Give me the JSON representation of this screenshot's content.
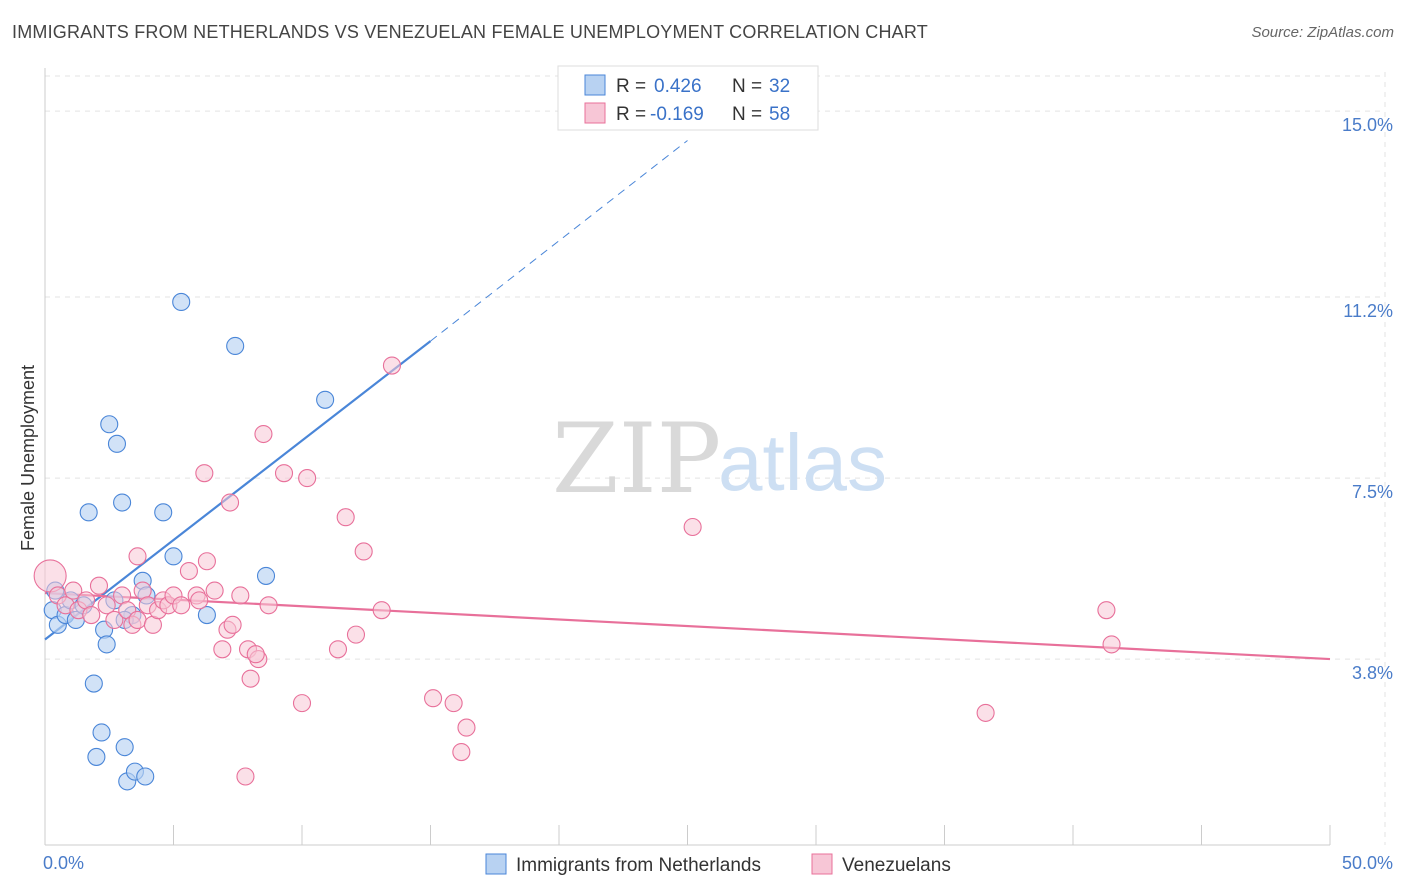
{
  "header": {
    "title": "IMMIGRANTS FROM NETHERLANDS VS VENEZUELAN FEMALE UNEMPLOYMENT CORRELATION CHART",
    "source": "Source: ZipAtlas.com"
  },
  "watermark": {
    "zip": "ZIP",
    "atlas": "atlas"
  },
  "colors": {
    "blue": "#4a86d8",
    "blue_fill": "#b8d2f2",
    "pink": "#e8709a",
    "pink_fill": "#f7c6d6",
    "axis_text": "#4a7cc9",
    "grid": "#e3e3e3"
  },
  "chart_data": {
    "type": "scatter",
    "ylabel": "Female Unemployment",
    "xlim": [
      0,
      50
    ],
    "ylim": [
      0,
      15.8
    ],
    "x_tick_labels": [
      {
        "value": 0,
        "label": "0.0%"
      },
      {
        "value": 50,
        "label": "50.0%"
      }
    ],
    "y_tick_labels": [
      {
        "value": 3.8,
        "label": "3.8%"
      },
      {
        "value": 7.5,
        "label": "7.5%"
      },
      {
        "value": 11.2,
        "label": "11.2%"
      },
      {
        "value": 15.0,
        "label": "15.0%"
      }
    ],
    "legend": [
      {
        "r_label": "R =",
        "r_value": "0.426",
        "n_label": "N =",
        "n_value": "32"
      },
      {
        "r_label": "R =",
        "r_value": "-0.169",
        "n_label": "N =",
        "n_value": "58"
      }
    ],
    "series": [
      {
        "name": "Immigrants from Netherlands",
        "color": "#4a86d8",
        "trend": {
          "x0": 0,
          "y0": 4.2,
          "x1": 15,
          "y1": 10.3,
          "x_dash_end": 25,
          "y_dash_end": 14.4
        },
        "points": [
          [
            0.3,
            4.8
          ],
          [
            0.5,
            4.5
          ],
          [
            0.8,
            4.7
          ],
          [
            1.0,
            5.0
          ],
          [
            0.4,
            5.2
          ],
          [
            1.2,
            4.6
          ],
          [
            1.5,
            4.9
          ],
          [
            2.7,
            5.0
          ],
          [
            1.7,
            6.8
          ],
          [
            1.9,
            3.3
          ],
          [
            2.0,
            1.8
          ],
          [
            2.2,
            2.3
          ],
          [
            2.5,
            8.6
          ],
          [
            2.3,
            4.4
          ],
          [
            2.4,
            4.1
          ],
          [
            2.8,
            8.2
          ],
          [
            3.0,
            7.0
          ],
          [
            3.1,
            2.0
          ],
          [
            3.2,
            1.3
          ],
          [
            3.4,
            4.7
          ],
          [
            3.5,
            1.5
          ],
          [
            3.1,
            4.6
          ],
          [
            3.8,
            5.4
          ],
          [
            3.9,
            1.4
          ],
          [
            3.95,
            5.1
          ],
          [
            4.6,
            6.8
          ],
          [
            5.3,
            11.1
          ],
          [
            5.0,
            5.9
          ],
          [
            6.3,
            4.7
          ],
          [
            7.4,
            10.2
          ],
          [
            8.6,
            5.5
          ],
          [
            10.9,
            9.1
          ]
        ]
      },
      {
        "name": "Venezuelans",
        "color": "#e8709a",
        "trend": {
          "x0": 0,
          "y0": 5.15,
          "x1": 50,
          "y1": 3.8
        },
        "points": [
          [
            0.2,
            5.5
          ],
          [
            0.5,
            5.1
          ],
          [
            0.8,
            4.9
          ],
          [
            1.1,
            5.2
          ],
          [
            1.3,
            4.8
          ],
          [
            1.6,
            5.0
          ],
          [
            1.8,
            4.7
          ],
          [
            2.1,
            5.3
          ],
          [
            2.4,
            4.9
          ],
          [
            2.7,
            4.6
          ],
          [
            3.0,
            5.1
          ],
          [
            3.2,
            4.8
          ],
          [
            3.4,
            4.5
          ],
          [
            3.6,
            4.6
          ],
          [
            3.8,
            5.2
          ],
          [
            4.0,
            4.9
          ],
          [
            4.2,
            4.5
          ],
          [
            4.4,
            4.8
          ],
          [
            4.6,
            5.0
          ],
          [
            4.8,
            4.9
          ],
          [
            5.0,
            5.1
          ],
          [
            5.3,
            4.9
          ],
          [
            5.6,
            5.6
          ],
          [
            5.9,
            5.1
          ],
          [
            6.0,
            5.0
          ],
          [
            6.3,
            5.8
          ],
          [
            6.6,
            5.2
          ],
          [
            6.9,
            4.0
          ],
          [
            7.1,
            4.4
          ],
          [
            7.3,
            4.5
          ],
          [
            6.2,
            7.6
          ],
          [
            7.2,
            7.0
          ],
          [
            7.6,
            5.1
          ],
          [
            7.8,
            1.4
          ],
          [
            7.9,
            4.0
          ],
          [
            8.0,
            3.4
          ],
          [
            8.3,
            3.8
          ],
          [
            8.5,
            8.4
          ],
          [
            8.7,
            4.9
          ],
          [
            9.3,
            7.6
          ],
          [
            10.0,
            2.9
          ],
          [
            10.2,
            7.5
          ],
          [
            11.4,
            4.0
          ],
          [
            11.7,
            6.7
          ],
          [
            12.1,
            4.3
          ],
          [
            12.4,
            6.0
          ],
          [
            13.1,
            4.8
          ],
          [
            13.5,
            9.8
          ],
          [
            15.1,
            3.0
          ],
          [
            15.9,
            2.9
          ],
          [
            16.2,
            1.9
          ],
          [
            16.4,
            2.4
          ],
          [
            25.2,
            6.5
          ],
          [
            36.6,
            2.7
          ],
          [
            41.3,
            4.8
          ],
          [
            41.5,
            4.1
          ],
          [
            3.6,
            5.9
          ],
          [
            8.2,
            3.9
          ]
        ]
      }
    ]
  }
}
